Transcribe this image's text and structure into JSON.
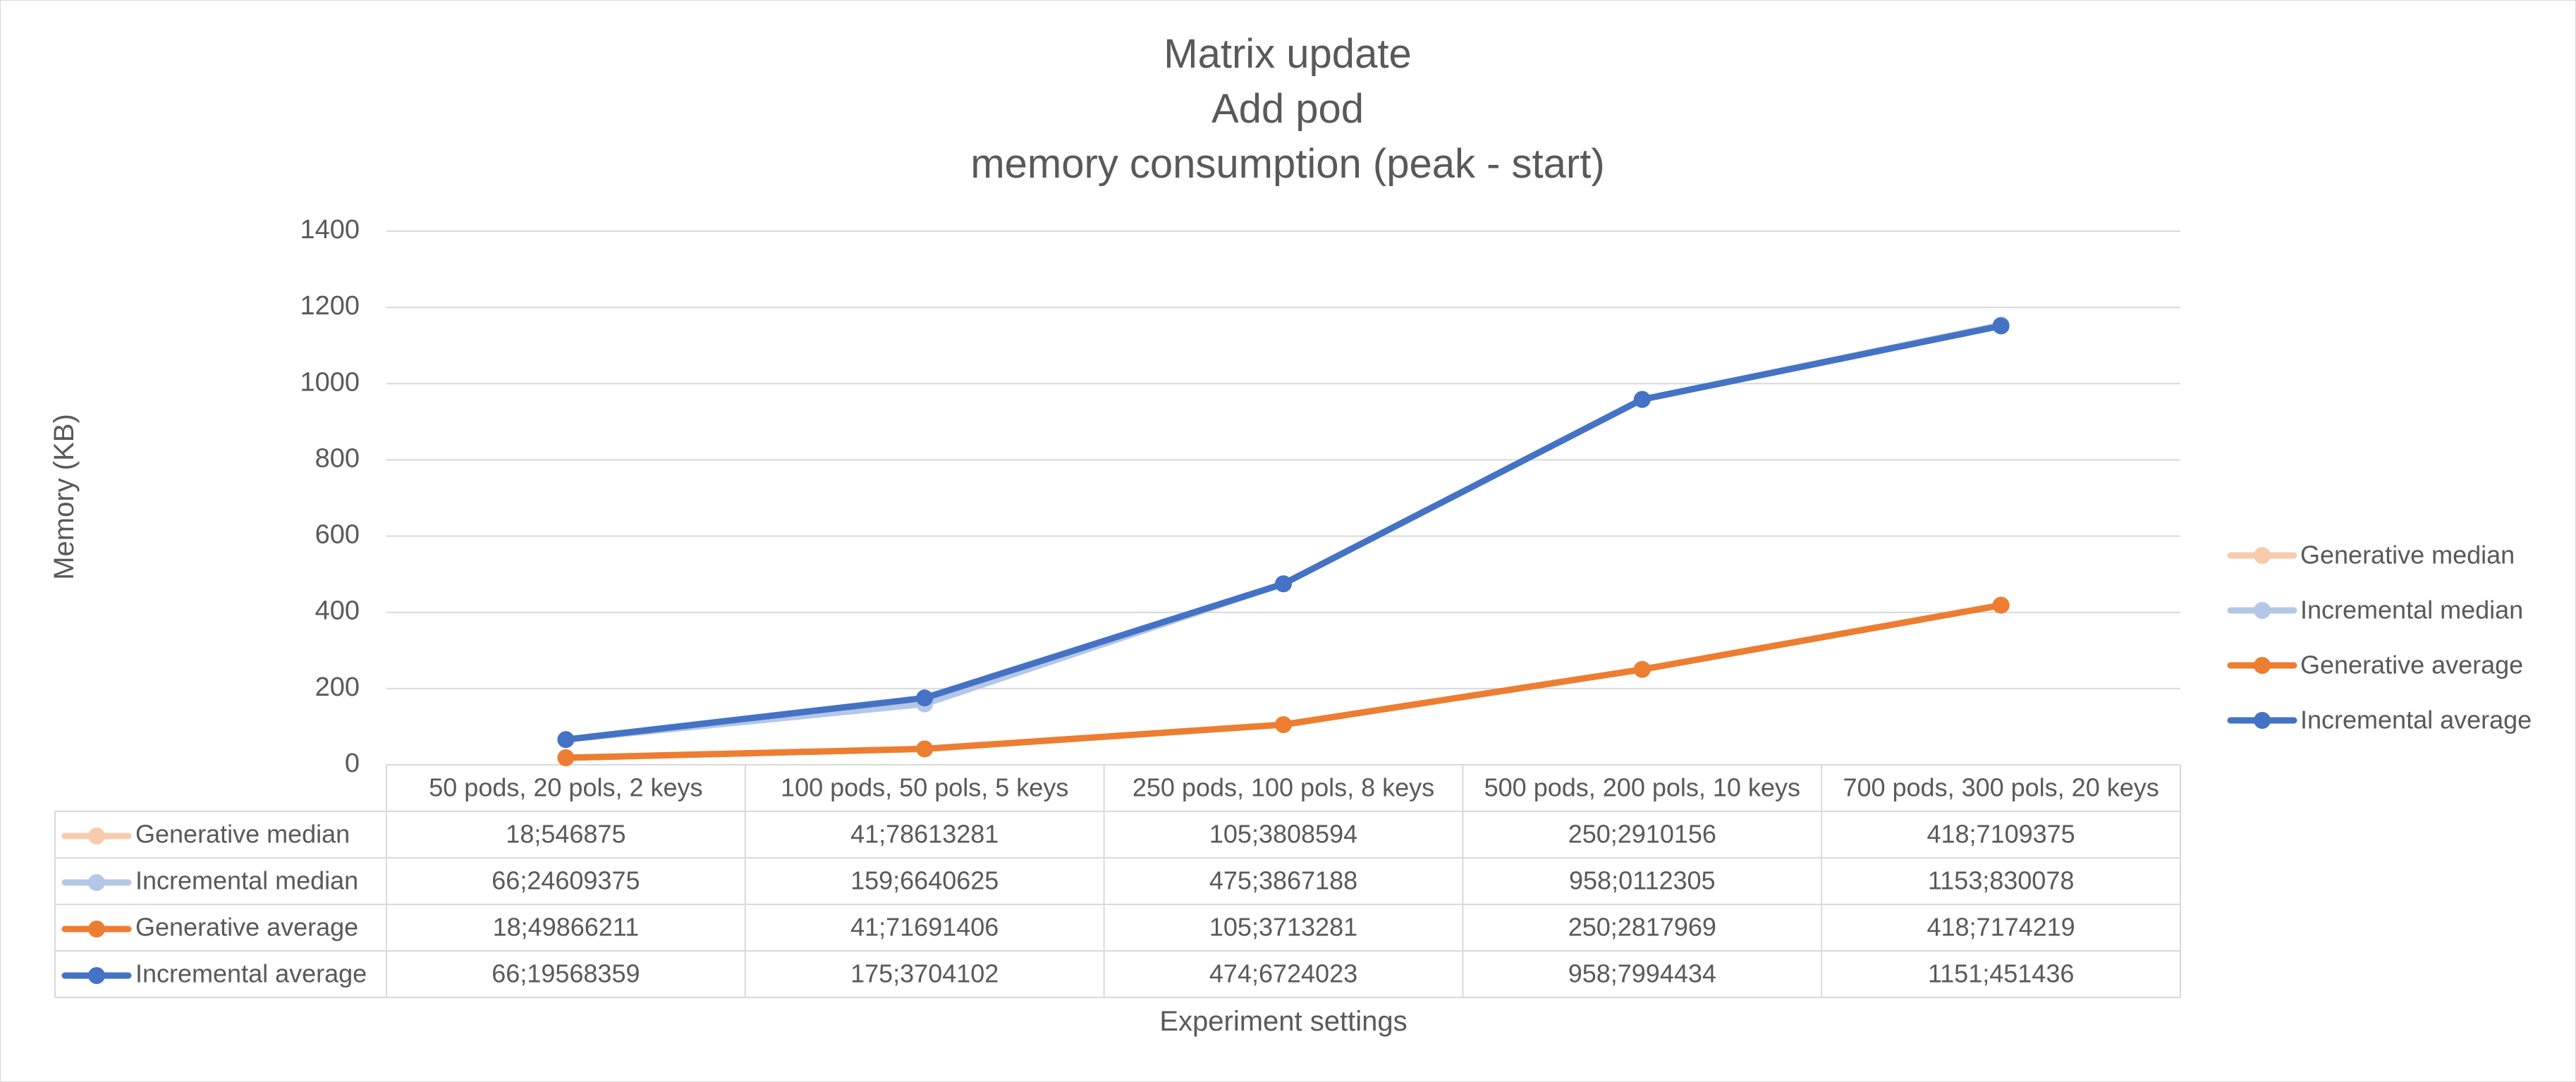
{
  "chart_data": {
    "type": "line",
    "title_lines": [
      "Matrix update",
      "Add pod",
      "memory consumption (peak - start)"
    ],
    "xlabel": "Experiment settings",
    "ylabel": "Memory  (KB)",
    "ylim": [
      0,
      1400
    ],
    "yticks": [
      0,
      200,
      400,
      600,
      800,
      1000,
      1200,
      1400
    ],
    "grid": true,
    "legend_position": "right",
    "categories": [
      "50 pods, 20 pols, 2 keys",
      "100 pods, 50 pols, 5 keys",
      "250 pods, 100 pols, 8 keys",
      "500 pods, 200 pols, 10 keys",
      "700 pods, 300 pols, 20 keys"
    ],
    "series": [
      {
        "name": "Generative median",
        "color": "#F8CBAD",
        "values": [
          18.546875,
          41.78613281,
          105.3808594,
          250.2910156,
          418.7109375
        ],
        "labels": [
          "18;546875",
          "41;78613281",
          "105;3808594",
          "250;2910156",
          "418;7109375"
        ]
      },
      {
        "name": "Incremental median",
        "color": "#B4C7E7",
        "values": [
          66.24609375,
          159.6640625,
          475.3867188,
          958.0112305,
          1153.830078
        ],
        "labels": [
          "66;24609375",
          "159;6640625",
          "475;3867188",
          "958;0112305",
          "1153;830078"
        ]
      },
      {
        "name": "Generative average",
        "color": "#ED7D31",
        "values": [
          18.49866211,
          41.71691406,
          105.3713281,
          250.2817969,
          418.7174219
        ],
        "labels": [
          "18;49866211",
          "41;71691406",
          "105;3713281",
          "250;2817969",
          "418;7174219"
        ]
      },
      {
        "name": "Incremental average",
        "color": "#4472C4",
        "values": [
          66.19568359,
          175.3704102,
          474.6724023,
          958.7994434,
          1151.451436
        ],
        "labels": [
          "66;19568359",
          "175;3704102",
          "474;6724023",
          "958;7994434",
          "1151;451436"
        ]
      }
    ]
  }
}
